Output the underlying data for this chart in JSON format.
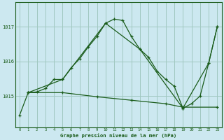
{
  "title": "Graphe pression niveau de la mer (hPa)",
  "bg_color": "#cce8f0",
  "grid_color": "#a0c8c0",
  "line_color": "#1a5c1a",
  "x_ticks": [
    0,
    1,
    2,
    3,
    4,
    5,
    6,
    7,
    8,
    9,
    10,
    11,
    12,
    13,
    14,
    15,
    16,
    17,
    18,
    19,
    20,
    21,
    22,
    23
  ],
  "xlim": [
    -0.5,
    23.5
  ],
  "ylim": [
    1014.1,
    1017.7
  ],
  "y_ticks": [
    1015,
    1016,
    1017
  ],
  "line1_x": [
    0,
    1,
    2,
    3,
    4,
    5,
    6,
    7,
    8,
    9,
    10,
    11,
    12,
    13,
    14,
    15,
    16,
    17,
    18,
    19,
    20,
    21,
    22,
    23
  ],
  "line1_y": [
    1014.45,
    1015.1,
    1015.12,
    1015.22,
    1015.48,
    1015.48,
    1015.82,
    1016.08,
    1016.42,
    1016.72,
    1017.1,
    1017.22,
    1017.18,
    1016.72,
    1016.35,
    1016.12,
    1015.72,
    1015.48,
    1015.28,
    1014.65,
    1014.78,
    1015.0,
    1015.95,
    1017.0
  ],
  "line2_x": [
    1,
    5,
    9,
    13,
    17,
    19,
    23
  ],
  "line2_y": [
    1015.1,
    1015.1,
    1014.98,
    1014.88,
    1014.78,
    1014.68,
    1014.68
  ],
  "line3_x": [
    1,
    5,
    10,
    14,
    19,
    22,
    23
  ],
  "line3_y": [
    1015.1,
    1015.48,
    1017.1,
    1016.35,
    1014.65,
    1015.95,
    1017.0
  ]
}
